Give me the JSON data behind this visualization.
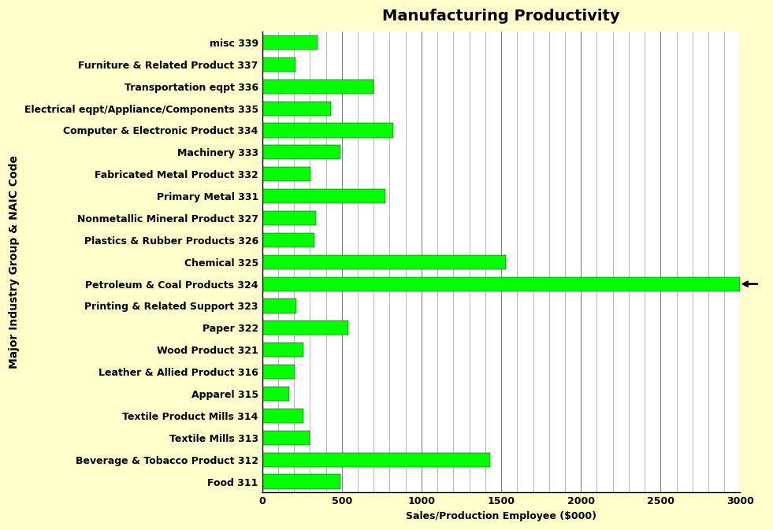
{
  "title": "Manufacturing Productivity",
  "xlabel": "Sales/Production Employee ($000)",
  "ylabel": "Major Industry Group & NAIC Code",
  "figure_bg_color": "#FFFFCC",
  "plot_bg_color": "#FFFFFF",
  "bar_color": "#00FF00",
  "xlim": [
    0,
    3000
  ],
  "xticks": [
    0,
    500,
    1000,
    1500,
    2000,
    2500,
    3000
  ],
  "grid_interval": 100,
  "categories": [
    "misc 339",
    "Furniture & Related Product 337",
    "Transportation eqpt 336",
    "Electrical eqpt/Appliance/Components 335",
    "Computer & Electronic Product 334",
    "Machinery 333",
    "Fabricated Metal Product 332",
    "Primary Metal 331",
    "Nonmetallic Mineral Product 327",
    "Plastics & Rubber Products 326",
    "Chemical 325",
    "Petroleum & Coal Products 324",
    "Printing & Related Support 323",
    "Paper 322",
    "Wood Product 321",
    "Leather & Allied Product 316",
    "Apparel 315",
    "Textile Product Mills 314",
    "Textile Mills 313",
    "Beverage & Tobacco Product 312",
    "Food 311"
  ],
  "values": [
    350,
    210,
    700,
    430,
    820,
    490,
    305,
    775,
    340,
    330,
    1530,
    3000,
    215,
    540,
    260,
    205,
    170,
    260,
    300,
    1430,
    490
  ],
  "annotation_bar_index": 11,
  "clipped_bar_value": 3000,
  "title_fontsize": 14,
  "label_fontsize": 9,
  "tick_fontsize": 9,
  "ylabel_fontsize": 10
}
